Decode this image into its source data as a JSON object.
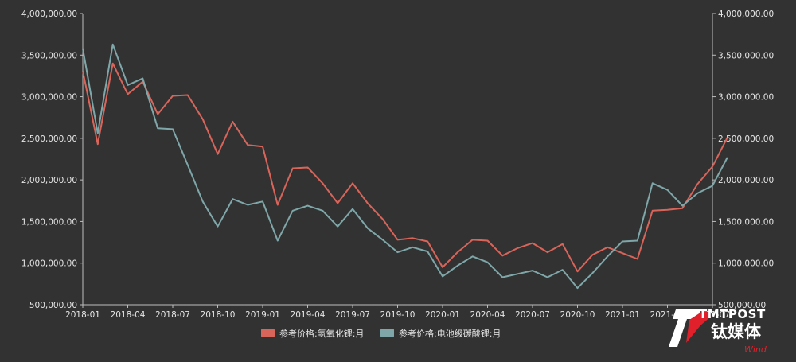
{
  "chart_data": {
    "type": "line",
    "x_ticks": [
      "2018-01",
      "2018-04",
      "2018-07",
      "2018-10",
      "2019-01",
      "2019-04",
      "2019-07",
      "2019-10",
      "2020-01",
      "2020-04",
      "2020-07",
      "2020-10",
      "2021-01",
      "2021-04",
      "2021-07"
    ],
    "y_ticks_left": [
      "4,000,000.00",
      "3,500,000.00",
      "3,000,000.00",
      "2,500,000.00",
      "2,000,000.00",
      "1,500,000.00",
      "1,000,000.00",
      "500,000.00"
    ],
    "y_ticks_right": [
      "4,000,000.00",
      "3,500,000.00",
      "3,000,000.00",
      "2,500,000.00",
      "2,000,000.00",
      "1,500,000.00",
      "1,000,000.00",
      "500,000.00"
    ],
    "ylim": [
      500000,
      4000000
    ],
    "x_start": "2018-01",
    "x_end": "2021-07",
    "grid": false,
    "legend_position": "bottom-center",
    "series": [
      {
        "name": "参考价格:氢氧化锂:月",
        "color": "#d9645a",
        "values": [
          3310000,
          2430000,
          3400000,
          3030000,
          3180000,
          2790000,
          3010000,
          3020000,
          2730000,
          2310000,
          2700000,
          2420000,
          2400000,
          1700000,
          2140000,
          2150000,
          1960000,
          1720000,
          1960000,
          1720000,
          1530000,
          1280000,
          1300000,
          1260000,
          950000,
          1130000,
          1280000,
          1270000,
          1090000,
          1180000,
          1240000,
          1130000,
          1230000,
          900000,
          1100000,
          1190000,
          1120000,
          1050000,
          1630000,
          1640000,
          1660000,
          1950000,
          2160000,
          2510000
        ]
      },
      {
        "name": "参考价格:电池级碳酸锂:月",
        "color": "#7fa7a9",
        "values": [
          3580000,
          2560000,
          3630000,
          3140000,
          3220000,
          2620000,
          2610000,
          2180000,
          1740000,
          1440000,
          1770000,
          1700000,
          1740000,
          1270000,
          1630000,
          1690000,
          1630000,
          1440000,
          1650000,
          1420000,
          1280000,
          1130000,
          1190000,
          1140000,
          840000,
          970000,
          1080000,
          1010000,
          830000,
          870000,
          910000,
          830000,
          920000,
          700000,
          880000,
          1080000,
          1260000,
          1270000,
          1960000,
          1880000,
          1690000,
          1840000,
          1930000,
          2270000
        ]
      }
    ]
  },
  "watermark": {
    "line1": "TMTPOST",
    "line2": "钛媒体",
    "line3": "Wind"
  }
}
